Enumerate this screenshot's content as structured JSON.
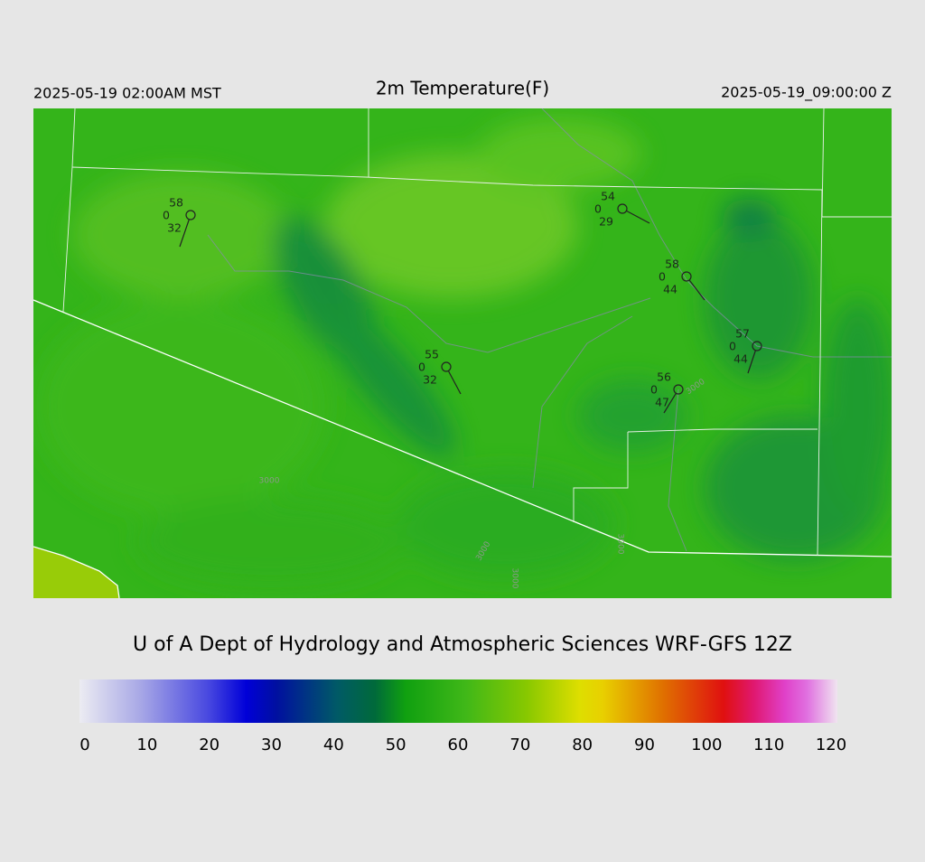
{
  "header": {
    "left": "2025-05-19 02:00AM MST",
    "title": "2m Temperature(F)",
    "right": "2025-05-19_09:00:00 Z"
  },
  "stations": [
    {
      "temperature": 58,
      "wind": 0,
      "dewpoint": 32
    },
    {
      "temperature": 54,
      "wind": 0,
      "dewpoint": 29
    },
    {
      "temperature": 58,
      "wind": 0,
      "dewpoint": 44
    },
    {
      "temperature": 57,
      "wind": 0,
      "dewpoint": 44
    },
    {
      "temperature": 55,
      "wind": 0,
      "dewpoint": 32
    },
    {
      "temperature": 56,
      "wind": 0,
      "dewpoint": 47
    }
  ],
  "contour_labels": [
    "3000",
    "3000",
    "3000",
    "3000",
    "3000"
  ],
  "footer": "U of A Dept of Hydrology and Atmospheric Sciences WRF-GFS 12Z",
  "colorbar": {
    "ticks": [
      0,
      10,
      20,
      30,
      40,
      50,
      60,
      70,
      80,
      90,
      100,
      110,
      120
    ]
  }
}
